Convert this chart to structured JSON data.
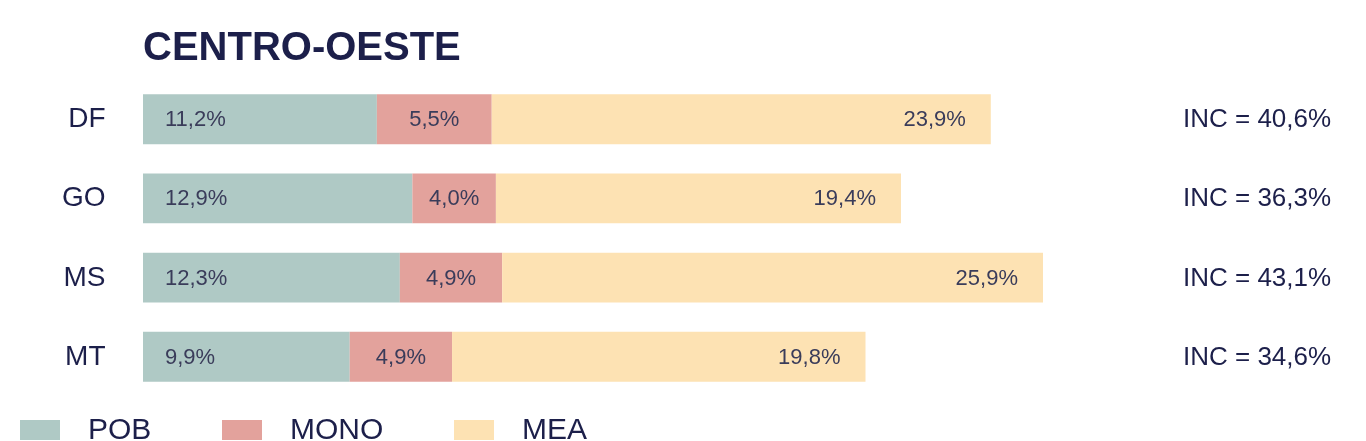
{
  "chart_data": {
    "type": "bar",
    "orientation": "horizontal",
    "stacked": true,
    "title": "CENTRO-OESTE",
    "categories": [
      "DF",
      "GO",
      "MS",
      "MT"
    ],
    "series": [
      {
        "name": "POB",
        "color": "#afc9c5",
        "values": [
          11.2,
          12.9,
          12.3,
          9.9
        ],
        "value_labels": [
          "11,2%",
          "12,9%",
          "12,3%",
          "9,9%"
        ]
      },
      {
        "name": "MONO",
        "color": "#e3a29c",
        "values": [
          5.5,
          4.0,
          4.9,
          4.9
        ],
        "value_labels": [
          "5,5%",
          "4,0%",
          "4,9%",
          "4,9%"
        ]
      },
      {
        "name": "MEA",
        "color": "#fde2b3",
        "values": [
          23.9,
          19.4,
          25.9,
          19.8
        ],
        "value_labels": [
          "23,9%",
          "19,4%",
          "25,9%",
          "19,8%"
        ]
      }
    ],
    "annotations": [
      "INC = 40,6%",
      "INC = 36,3%",
      "INC = 43,1%",
      "INC = 34,6%"
    ],
    "legend": "bottom"
  }
}
